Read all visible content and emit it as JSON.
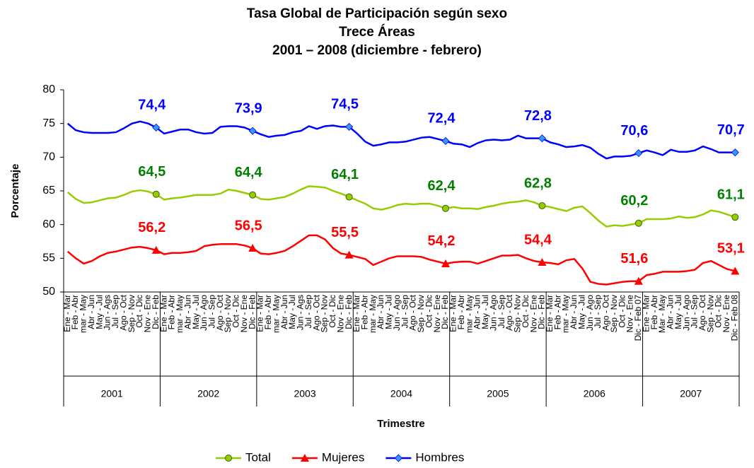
{
  "chart_data": {
    "type": "line",
    "title": [
      "Tasa Global de Participación según sexo",
      "Trece Áreas",
      "2001 – 2008 (diciembre - febrero)"
    ],
    "ylabel": "Porcentaje",
    "xlabel": "Trimestre",
    "ylim": [
      50,
      80
    ],
    "yticks": [
      50,
      55,
      60,
      65,
      70,
      75,
      80
    ],
    "grid": false,
    "legend": "bottom",
    "year_groups": [
      "2001",
      "2002",
      "2003",
      "2004",
      "2005",
      "2006",
      "2007"
    ],
    "categories": [
      "Ene - Mar",
      "Feb - Abr",
      "mar - May",
      "Abr - Jun",
      "May - Jul",
      "Jun - Ags",
      "Jul - Sep",
      "Ago - Oct",
      "Sep - Nov",
      "Oct - Dic",
      "Nov - Ene",
      "Dic - Feb",
      "Ene - Mar",
      "Feb - Abr",
      "mar - May",
      "Abr - Jun",
      "May - Jul",
      "Jun - Ago",
      "Jul - Sep",
      "Ago - Oct",
      "Sep - Nov",
      "Oct - Dic",
      "Nov - Ene",
      "Dic - Feb",
      "Ene - Mar",
      "Feb - Abr",
      "mar - May",
      "Abr - Jun",
      "May - Jul",
      "Jun - Ags",
      "Jul - Sep",
      "Ago - Oct",
      "Sep - Nov",
      "Oct - Dic",
      "Nov - Ene",
      "Dic - Feb",
      "Ene - Mar",
      "Feb - Abr",
      "mar - May",
      "Abr - Jun",
      "May - Jul",
      "Jun - Ago",
      "Jul - Sep",
      "Ago - Oct",
      "Sep - Nov",
      "Oct - Dic",
      "Nov - Ene",
      "Dic - Feb",
      "Ene - Mar",
      "Feb - Abr",
      "mar - May",
      "Abr - Jun",
      "May - Jul",
      "Jun - Ago",
      "Jul - Sep",
      "Ago - Oct",
      "Sep - Nov",
      "Oct - Dic",
      "Nov - Ene",
      "Dic - Feb",
      "Ene - Mar",
      "Feb - Abr",
      "mar - May",
      "Abr - Jun",
      "May - Jul",
      "Jun - Ago",
      "Jul - Sep",
      "Ago - Oct",
      "Sep - Nov",
      "Oct - Dic",
      "Nov - Ene",
      "Dic - Feb 07",
      "Ene - Mar",
      "Feb - Abr",
      "Mar - May",
      "Abr - Jun",
      "May - Jul",
      "Jun - Ago",
      "Jul - Sep",
      "Ago - Oct",
      "Sep - Nov",
      "Oct - Dic",
      "Nov - Ene",
      "Dic - Feb 08"
    ],
    "series": [
      {
        "name": "Total",
        "color": "#99cc00",
        "marker": "circle",
        "marker_color": "#99cc00",
        "label_color": "#008000",
        "values": [
          64.8,
          63.8,
          63.2,
          63.3,
          63.6,
          63.9,
          64.0,
          64.4,
          64.9,
          65.1,
          64.9,
          64.5,
          63.7,
          63.9,
          64.0,
          64.2,
          64.4,
          64.4,
          64.4,
          64.6,
          65.2,
          65.0,
          64.7,
          64.4,
          63.8,
          63.7,
          63.9,
          64.1,
          64.6,
          65.2,
          65.7,
          65.6,
          65.5,
          65.0,
          64.6,
          64.1,
          63.6,
          63.1,
          62.4,
          62.2,
          62.5,
          62.9,
          63.1,
          63.0,
          63.1,
          63.1,
          62.8,
          62.4,
          62.6,
          62.4,
          62.4,
          62.3,
          62.6,
          62.8,
          63.1,
          63.3,
          63.4,
          63.6,
          63.3,
          62.8,
          62.6,
          62.3,
          62.0,
          62.5,
          62.7,
          61.7,
          60.6,
          59.7,
          59.9,
          59.8,
          60.0,
          60.2,
          60.8,
          60.8,
          60.8,
          60.9,
          61.2,
          61.0,
          61.1,
          61.5,
          62.1,
          61.9,
          61.5,
          61.1
        ],
        "value_labels": [
          null,
          null,
          null,
          null,
          null,
          null,
          null,
          null,
          null,
          null,
          null,
          "64,5",
          null,
          null,
          null,
          null,
          null,
          null,
          null,
          null,
          null,
          null,
          null,
          "64,4",
          null,
          null,
          null,
          null,
          null,
          null,
          null,
          null,
          null,
          null,
          null,
          "64,1",
          null,
          null,
          null,
          null,
          null,
          null,
          null,
          null,
          null,
          null,
          null,
          "62,4",
          null,
          null,
          null,
          null,
          null,
          null,
          null,
          null,
          null,
          null,
          null,
          "62,8",
          null,
          null,
          null,
          null,
          null,
          null,
          null,
          null,
          null,
          null,
          null,
          "60,2",
          null,
          null,
          null,
          null,
          null,
          null,
          null,
          null,
          null,
          null,
          null,
          "61,1"
        ]
      },
      {
        "name": "Mujeres",
        "color": "#ff0000",
        "marker": "triangle",
        "marker_color": "#ff0000",
        "label_color": "#ff0000",
        "values": [
          56.0,
          55.0,
          54.2,
          54.6,
          55.3,
          55.8,
          56.0,
          56.3,
          56.6,
          56.7,
          56.5,
          56.2,
          55.6,
          55.8,
          55.8,
          55.9,
          56.1,
          56.8,
          57.0,
          57.1,
          57.1,
          57.1,
          56.9,
          56.5,
          55.7,
          55.6,
          55.8,
          56.1,
          56.8,
          57.6,
          58.4,
          58.4,
          57.8,
          56.5,
          55.7,
          55.5,
          55.2,
          54.9,
          54.0,
          54.5,
          55.0,
          55.3,
          55.3,
          55.3,
          55.2,
          54.8,
          54.5,
          54.2,
          54.4,
          54.5,
          54.5,
          54.2,
          54.6,
          55.0,
          55.4,
          55.4,
          55.5,
          55.0,
          54.6,
          54.4,
          54.3,
          54.1,
          54.7,
          54.9,
          53.5,
          51.5,
          51.2,
          51.1,
          51.3,
          51.5,
          51.6,
          51.6,
          52.5,
          52.7,
          53.0,
          53.0,
          53.0,
          53.1,
          53.3,
          54.3,
          54.6,
          54.0,
          53.4,
          53.1
        ],
        "value_labels": [
          null,
          null,
          null,
          null,
          null,
          null,
          null,
          null,
          null,
          null,
          null,
          "56,2",
          null,
          null,
          null,
          null,
          null,
          null,
          null,
          null,
          null,
          null,
          null,
          "56,5",
          null,
          null,
          null,
          null,
          null,
          null,
          null,
          null,
          null,
          null,
          null,
          "55,5",
          null,
          null,
          null,
          null,
          null,
          null,
          null,
          null,
          null,
          null,
          null,
          "54,2",
          null,
          null,
          null,
          null,
          null,
          null,
          null,
          null,
          null,
          null,
          null,
          "54,4",
          null,
          null,
          null,
          null,
          null,
          null,
          null,
          null,
          null,
          null,
          null,
          "51,6",
          null,
          null,
          null,
          null,
          null,
          null,
          null,
          null,
          null,
          null,
          null,
          "53,1"
        ]
      },
      {
        "name": "Hombres",
        "color": "#0000ff",
        "marker": "diamond",
        "marker_color": "#3399ff",
        "label_color": "#0000ff",
        "values": [
          75.0,
          74.0,
          73.7,
          73.6,
          73.6,
          73.6,
          73.7,
          74.3,
          75.0,
          75.3,
          75.0,
          74.4,
          73.5,
          73.8,
          74.1,
          74.1,
          73.7,
          73.5,
          73.6,
          74.5,
          74.6,
          74.6,
          74.4,
          73.9,
          73.4,
          73.0,
          73.2,
          73.3,
          73.7,
          73.9,
          74.6,
          74.2,
          74.6,
          74.7,
          74.5,
          74.5,
          73.5,
          72.3,
          71.7,
          71.9,
          72.2,
          72.2,
          72.3,
          72.6,
          72.9,
          73.0,
          72.7,
          72.4,
          72.0,
          71.9,
          71.5,
          72.1,
          72.5,
          72.6,
          72.5,
          72.6,
          73.2,
          72.8,
          72.8,
          72.8,
          72.2,
          71.9,
          71.5,
          71.6,
          71.8,
          71.4,
          70.5,
          69.8,
          70.1,
          70.1,
          70.2,
          70.6,
          71.0,
          70.7,
          70.3,
          71.1,
          70.8,
          70.8,
          71.0,
          71.6,
          71.2,
          70.7,
          70.7,
          70.7
        ],
        "value_labels": [
          null,
          null,
          null,
          null,
          null,
          null,
          null,
          null,
          null,
          null,
          null,
          "74,4",
          null,
          null,
          null,
          null,
          null,
          null,
          null,
          null,
          null,
          null,
          null,
          "73,9",
          null,
          null,
          null,
          null,
          null,
          null,
          null,
          null,
          null,
          null,
          null,
          "74,5",
          null,
          null,
          null,
          null,
          null,
          null,
          null,
          null,
          null,
          null,
          null,
          "72,4",
          null,
          null,
          null,
          null,
          null,
          null,
          null,
          null,
          null,
          null,
          null,
          "72,8",
          null,
          null,
          null,
          null,
          null,
          null,
          null,
          null,
          null,
          null,
          null,
          "70,6",
          null,
          null,
          null,
          null,
          null,
          null,
          null,
          null,
          null,
          null,
          null,
          "70,7"
        ]
      }
    ]
  }
}
